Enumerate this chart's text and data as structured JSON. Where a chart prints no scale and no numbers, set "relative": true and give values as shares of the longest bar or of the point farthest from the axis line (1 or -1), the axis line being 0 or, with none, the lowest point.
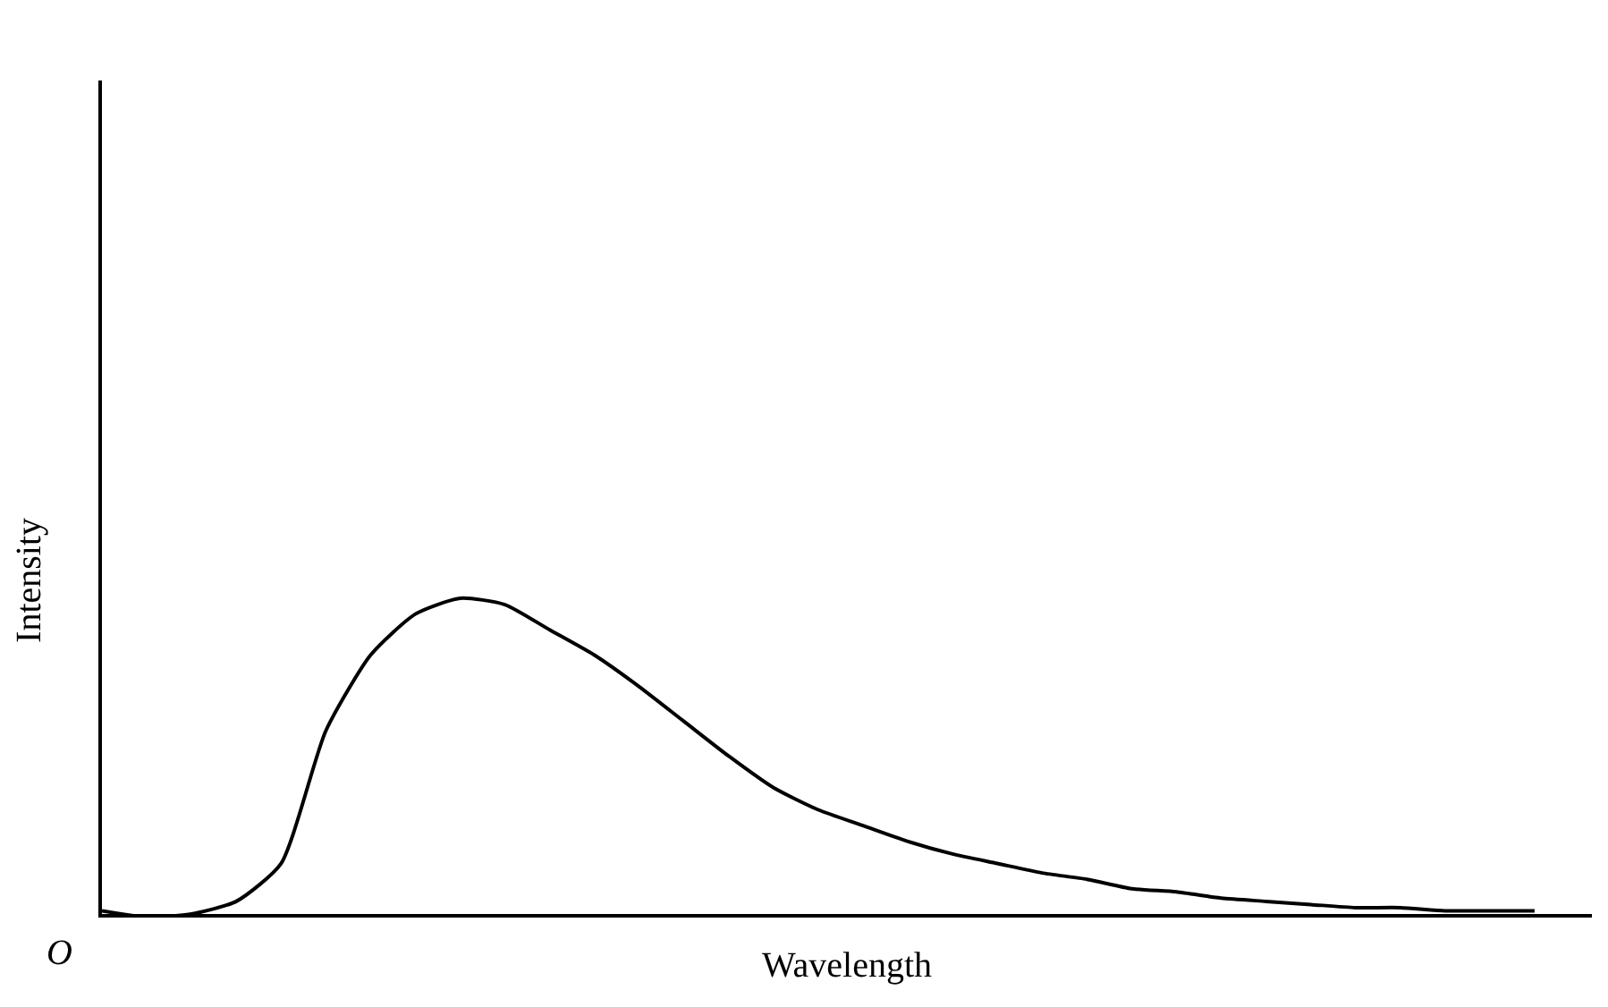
{
  "chart_data": {
    "type": "line",
    "relative": true,
    "xlabel": "Wavelength",
    "ylabel": "Intensity",
    "annotations": [
      "O"
    ],
    "marker": "none",
    "line_style": "solid",
    "categories": [
      null,
      null,
      null,
      null,
      null,
      null,
      null,
      null,
      null,
      null,
      null,
      null,
      null,
      null,
      null,
      null,
      null,
      null,
      null,
      null,
      null,
      null,
      null,
      null,
      null,
      null,
      null,
      null,
      null,
      null,
      null,
      null,
      null
    ],
    "series": [
      {
        "color": "#000000",
        "values": [
          0.01,
          -0.01,
          0,
          0.04,
          0.16,
          0.58,
          0.82,
          0.95,
          1,
          0.98,
          0.9,
          0.82,
          0.72,
          0.61,
          0.5,
          0.4,
          0.33,
          0.28,
          0.23,
          0.19,
          0.16,
          0.13,
          0.11,
          0.08,
          0.07,
          0.05,
          0.04,
          0.03,
          0.02,
          0.02,
          0.01,
          0.01,
          0.01
        ]
      }
    ]
  }
}
